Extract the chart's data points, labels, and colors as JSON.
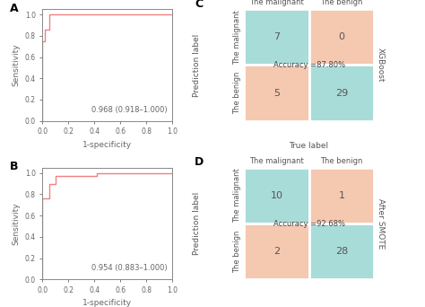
{
  "panel_labels": [
    "A",
    "B",
    "C",
    "D"
  ],
  "roc_A": {
    "fpr": [
      0.0,
      0.0,
      0.02,
      0.02,
      0.05,
      0.05,
      0.28,
      0.28,
      1.0
    ],
    "tpr": [
      0.0,
      0.75,
      0.75,
      0.86,
      0.86,
      1.0,
      1.0,
      1.0,
      1.0
    ],
    "auc_text": "0.968 (0.918–1.000)",
    "xlabel": "1-specificity",
    "ylabel": "Sensitivity"
  },
  "roc_B": {
    "fpr": [
      0.0,
      0.0,
      0.05,
      0.05,
      0.1,
      0.1,
      0.42,
      0.42,
      1.0
    ],
    "tpr": [
      0.0,
      0.76,
      0.76,
      0.9,
      0.9,
      0.97,
      0.97,
      1.0,
      1.0
    ],
    "auc_text": "0.954 (0.883–1.000)",
    "xlabel": "1-specificity",
    "ylabel": "Sensitivity"
  },
  "cm_C": {
    "values": [
      [
        7,
        0
      ],
      [
        5,
        29
      ]
    ],
    "accuracy_text": "Accuracy =87.80%",
    "true_label": "True label",
    "pred_label": "Prediction label",
    "col_labels": [
      "The malignant",
      "The benign"
    ],
    "row_labels": [
      "The malignant",
      "The benign"
    ],
    "right_label": "XGBoost",
    "colors": {
      "diag": "#a8dcd9",
      "off_diag": "#f5c8b0"
    }
  },
  "cm_D": {
    "values": [
      [
        10,
        1
      ],
      [
        2,
        28
      ]
    ],
    "accuracy_text": "Accuracy =92.68%",
    "true_label": "True label",
    "pred_label": "Prediction label",
    "col_labels": [
      "The malignant",
      "The benign"
    ],
    "row_labels": [
      "The malignant",
      "The benign"
    ],
    "right_label": "After SMOTE",
    "colors": {
      "diag": "#a8dcd9",
      "off_diag": "#f5c8b0"
    }
  },
  "line_color": "#f08080",
  "axis_color": "#666666",
  "bg_color": "#ffffff",
  "font_size": 6.5,
  "auc_font_size": 6.0
}
